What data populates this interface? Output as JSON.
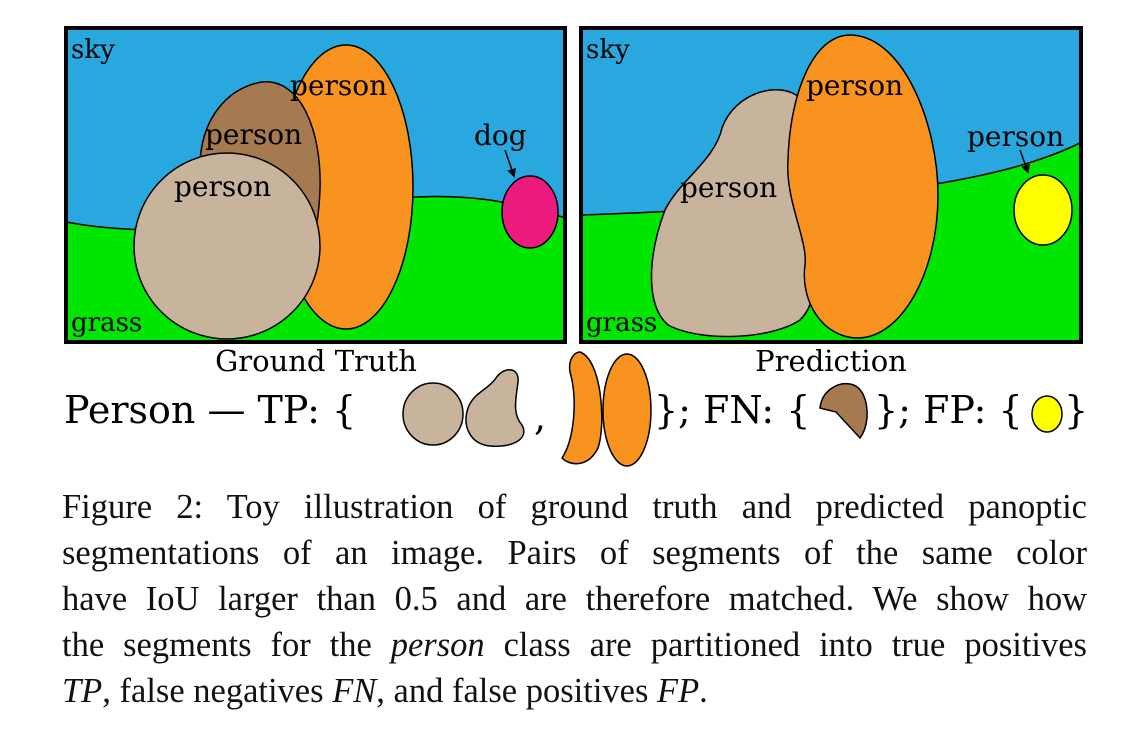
{
  "colors": {
    "sky": "#29a8e0",
    "grass": "#00e600",
    "person_tan": "#c8b49c",
    "person_brown": "#a67a50",
    "person_orange": "#f7931e",
    "dog_magenta": "#ee1b7e",
    "fp_yellow": "#ffff00",
    "outline": "#000000"
  },
  "ground_truth": {
    "title": "Ground Truth",
    "labels": {
      "sky": "sky",
      "grass": "grass",
      "person_orange": "person",
      "person_brown": "person",
      "person_tan": "person",
      "dog": "dog"
    }
  },
  "prediction": {
    "title": "Prediction",
    "labels": {
      "sky": "sky",
      "grass": "grass",
      "person_orange": "person",
      "person_tan": "person",
      "person_yellow": "person"
    }
  },
  "legend": {
    "prefix": "Person — TP: {",
    "comma": ",",
    "fn_text": "}; FN: {",
    "fp_text": "}; FP: {",
    "close": "}"
  },
  "caption": {
    "line1": "Figure 2: Toy illustration of ground truth and predicted panoptic",
    "line2": "segmentations of an image. Pairs of segments of the same color",
    "line3": "have IoU larger than 0.5 and are therefore matched. We show how",
    "line4_a": "the segments for the ",
    "line4_em": "person",
    "line4_b": " class are partitioned into true positives",
    "tp": "TP",
    "line5_a": ", false negatives ",
    "fn": "FN",
    "line5_b": ", and false positives ",
    "fp": "FP",
    "line5_c": "."
  }
}
